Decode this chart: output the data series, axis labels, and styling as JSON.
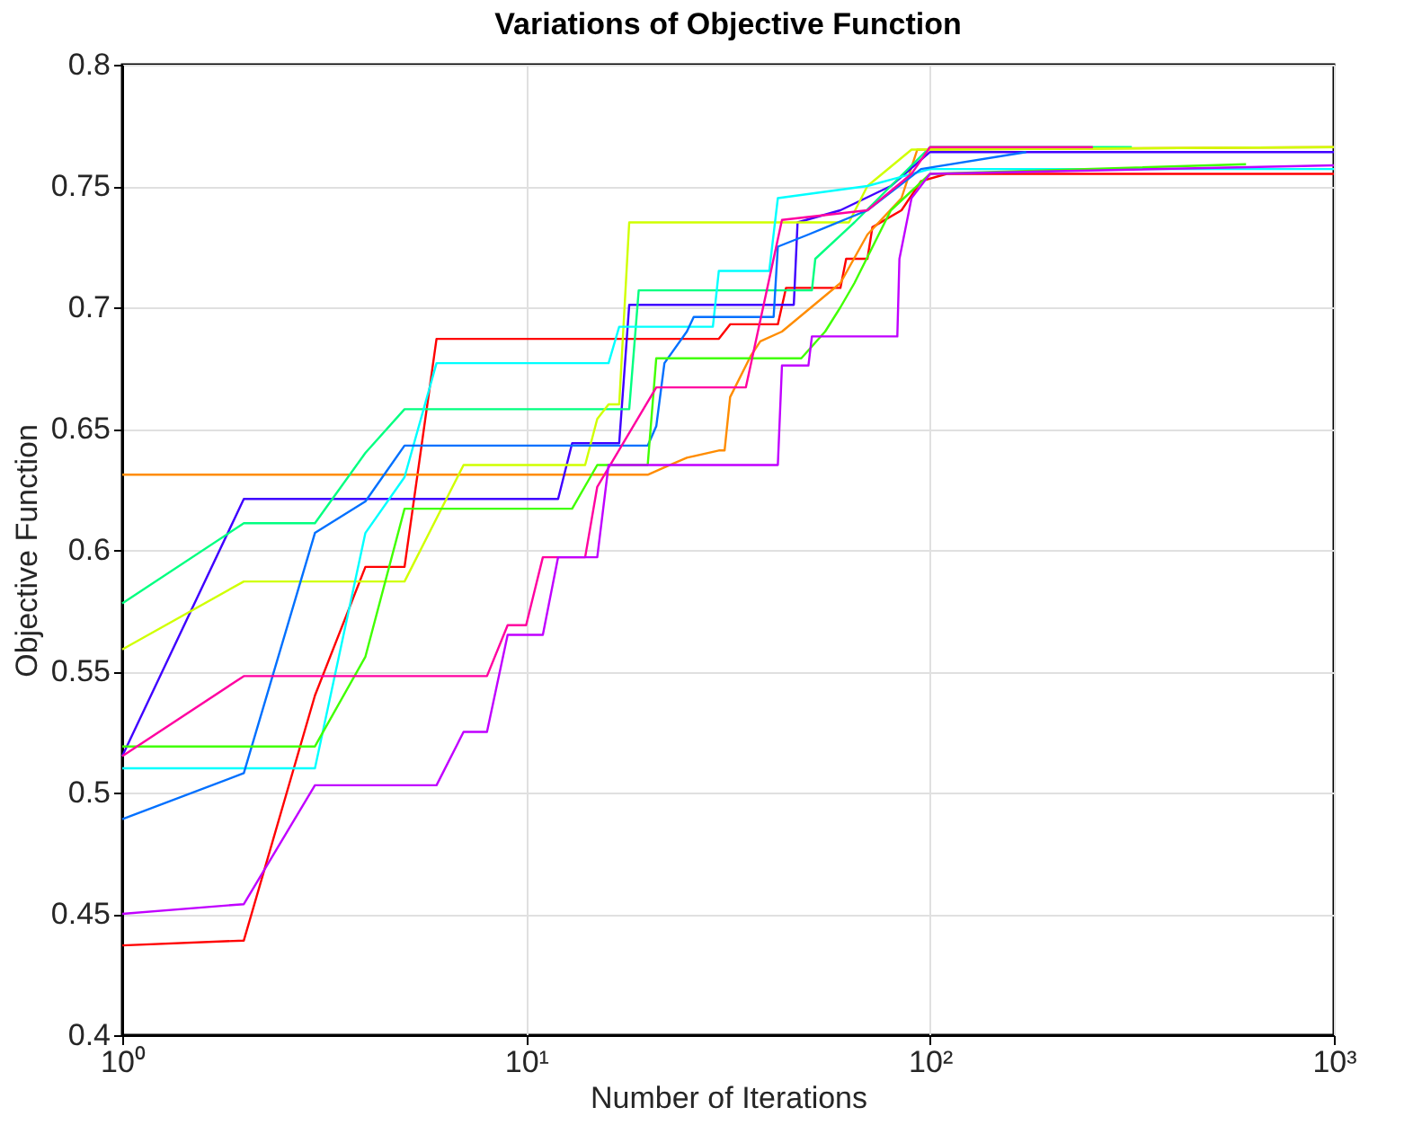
{
  "chart_data": {
    "type": "line",
    "title": "Variations of Objective Function",
    "xlabel": "Number of Iterations",
    "ylabel": "Objective Function",
    "log": "x",
    "grid": true,
    "legend": false,
    "marker": "none",
    "line_style": "solid",
    "xlim": [
      1,
      1000
    ],
    "xticks": [
      {
        "value": 1,
        "label": "10⁰"
      },
      {
        "value": 10,
        "label": "10¹"
      },
      {
        "value": 100,
        "label": "10²"
      },
      {
        "value": 1000,
        "label": "10³"
      }
    ],
    "ylim": [
      0.4,
      0.8
    ],
    "yticks": [
      0.4,
      0.45,
      0.5,
      0.55,
      0.6,
      0.65,
      0.7,
      0.75,
      0.8
    ],
    "series": [
      {
        "color": "#ff0000",
        "x": [
          1,
          2,
          3,
          4,
          5,
          6,
          30,
          32,
          42,
          44,
          60,
          62,
          70,
          72,
          85,
          95,
          110,
          1000
        ],
        "values": [
          0.437,
          0.439,
          0.54,
          0.593,
          0.593,
          0.687,
          0.687,
          0.693,
          0.693,
          0.708,
          0.708,
          0.72,
          0.72,
          0.733,
          0.74,
          0.752,
          0.755,
          0.755
        ]
      },
      {
        "color": "#ff8c00",
        "x": [
          1,
          20,
          22,
          25,
          30,
          31,
          32,
          36,
          38,
          43,
          60,
          70,
          85,
          93,
          1000
        ],
        "values": [
          0.631,
          0.631,
          0.634,
          0.638,
          0.641,
          0.641,
          0.663,
          0.68,
          0.686,
          0.69,
          0.71,
          0.73,
          0.745,
          0.765,
          0.766
        ]
      },
      {
        "color": "#3f00ff",
        "x": [
          1,
          2,
          12,
          13,
          17,
          18,
          46,
          47,
          60,
          80,
          100,
          1000
        ],
        "values": [
          0.515,
          0.621,
          0.621,
          0.644,
          0.644,
          0.701,
          0.701,
          0.735,
          0.74,
          0.75,
          0.764,
          0.764
        ]
      },
      {
        "color": "#00ff80",
        "x": [
          1,
          2,
          3,
          4,
          5,
          18,
          19,
          51,
          52,
          65,
          80,
          100,
          316
        ],
        "values": [
          0.578,
          0.611,
          0.611,
          0.64,
          0.658,
          0.658,
          0.707,
          0.707,
          0.72,
          0.735,
          0.75,
          0.766,
          0.766
        ]
      },
      {
        "color": "#d0ff00",
        "x": [
          1,
          2,
          5,
          7,
          14,
          15,
          16,
          17,
          18,
          63,
          70,
          90,
          1000
        ],
        "values": [
          0.559,
          0.587,
          0.587,
          0.635,
          0.635,
          0.654,
          0.66,
          0.66,
          0.735,
          0.735,
          0.75,
          0.765,
          0.766
        ]
      },
      {
        "color": "#00ffff",
        "x": [
          1,
          3,
          4,
          5,
          6,
          16,
          17,
          29,
          30,
          40,
          42,
          70,
          100,
          1000
        ],
        "values": [
          0.51,
          0.51,
          0.607,
          0.63,
          0.677,
          0.677,
          0.692,
          0.692,
          0.715,
          0.715,
          0.745,
          0.75,
          0.757,
          0.757
        ]
      },
      {
        "color": "#0070ff",
        "x": [
          1,
          2,
          3,
          4,
          5,
          20,
          21,
          22,
          25,
          26,
          41,
          42,
          50,
          70,
          95,
          173
        ],
        "values": [
          0.489,
          0.508,
          0.607,
          0.62,
          0.643,
          0.643,
          0.651,
          0.677,
          0.69,
          0.696,
          0.696,
          0.725,
          0.73,
          0.74,
          0.757,
          0.764
        ]
      },
      {
        "color": "#40ff00",
        "x": [
          1,
          3,
          4,
          5,
          13,
          15,
          20,
          21,
          48,
          55,
          60,
          65,
          80,
          100,
          606
        ],
        "values": [
          0.519,
          0.519,
          0.556,
          0.617,
          0.617,
          0.635,
          0.635,
          0.679,
          0.679,
          0.69,
          0.7,
          0.71,
          0.74,
          0.755,
          0.759
        ]
      },
      {
        "color": "#ff00a0",
        "x": [
          1,
          2,
          8,
          9,
          10,
          11,
          14,
          15,
          21,
          35,
          43,
          70,
          90,
          100,
          253
        ],
        "values": [
          0.515,
          0.548,
          0.548,
          0.569,
          0.569,
          0.597,
          0.597,
          0.626,
          0.667,
          0.667,
          0.736,
          0.74,
          0.755,
          0.766,
          0.766
        ]
      },
      {
        "color": "#c000ff",
        "x": [
          1,
          2,
          3,
          6,
          7,
          8,
          9,
          11,
          12,
          15,
          16,
          42,
          43,
          50,
          51,
          83,
          84,
          90,
          100,
          1000
        ],
        "values": [
          0.45,
          0.454,
          0.503,
          0.503,
          0.525,
          0.525,
          0.565,
          0.565,
          0.597,
          0.597,
          0.635,
          0.635,
          0.676,
          0.676,
          0.688,
          0.688,
          0.72,
          0.745,
          0.755,
          0.7585
        ]
      }
    ]
  }
}
